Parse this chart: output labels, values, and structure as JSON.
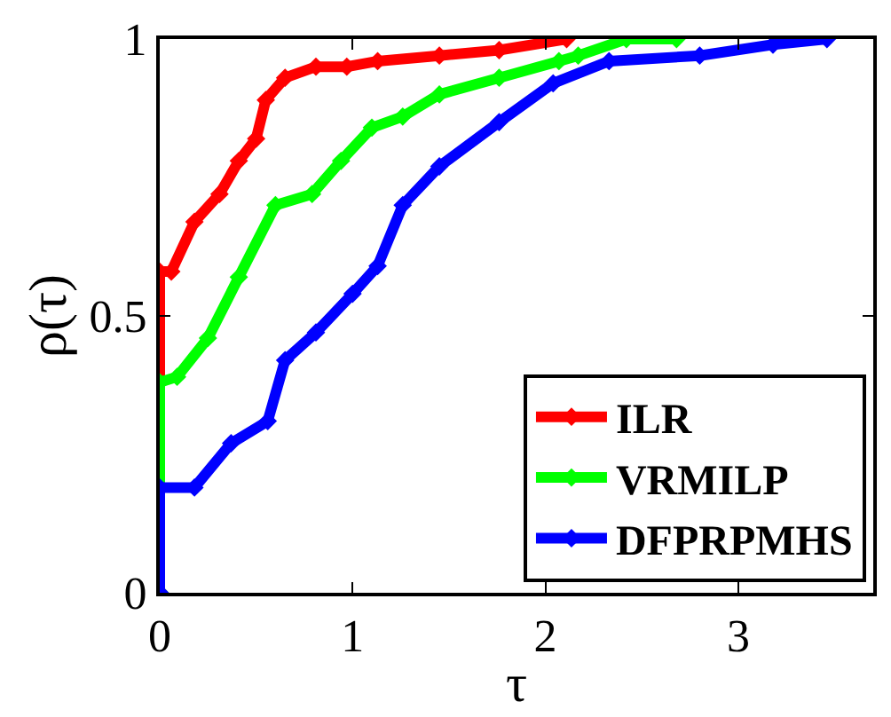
{
  "chart_data": {
    "type": "line",
    "xlabel": "τ",
    "ylabel": "ρ(τ)",
    "xlim": [
      0,
      3.7
    ],
    "ylim": [
      0,
      1
    ],
    "xticks": [
      0,
      1,
      2,
      3
    ],
    "yticks": [
      0,
      0.5,
      1
    ],
    "legend": "bottom right",
    "marker": "diamond",
    "line_style": "solid",
    "series": [
      {
        "name": "ILR",
        "color": "#ff0000",
        "x": [
          0,
          0,
          0.06,
          0.18,
          0.31,
          0.41,
          0.5,
          0.55,
          0.65,
          0.81,
          0.97,
          1.13,
          1.45,
          1.76,
          2.11
        ],
        "values": [
          0,
          0.58,
          0.58,
          0.67,
          0.72,
          0.78,
          0.82,
          0.89,
          0.93,
          0.95,
          0.95,
          0.96,
          0.97,
          0.98,
          1.0
        ]
      },
      {
        "name": "VRMILP",
        "color": "#00ff00",
        "x": [
          0,
          0,
          0.09,
          0.25,
          0.41,
          0.6,
          0.79,
          0.94,
          1.1,
          1.26,
          1.45,
          1.76,
          2.07,
          2.17,
          2.42,
          2.68
        ],
        "values": [
          0,
          0.38,
          0.39,
          0.46,
          0.57,
          0.7,
          0.72,
          0.78,
          0.84,
          0.86,
          0.9,
          0.93,
          0.96,
          0.97,
          1.0,
          1.0
        ]
      },
      {
        "name": "DFPRPMHS",
        "color": "#0000ff",
        "x": [
          0,
          0,
          0.18,
          0.37,
          0.56,
          0.65,
          0.81,
          1.0,
          1.13,
          1.26,
          1.45,
          1.76,
          2.04,
          2.33,
          2.8,
          3.18,
          3.46
        ],
        "values": [
          0,
          0.19,
          0.19,
          0.27,
          0.31,
          0.42,
          0.47,
          0.54,
          0.59,
          0.7,
          0.77,
          0.85,
          0.92,
          0.96,
          0.97,
          0.99,
          1.0
        ]
      }
    ]
  }
}
